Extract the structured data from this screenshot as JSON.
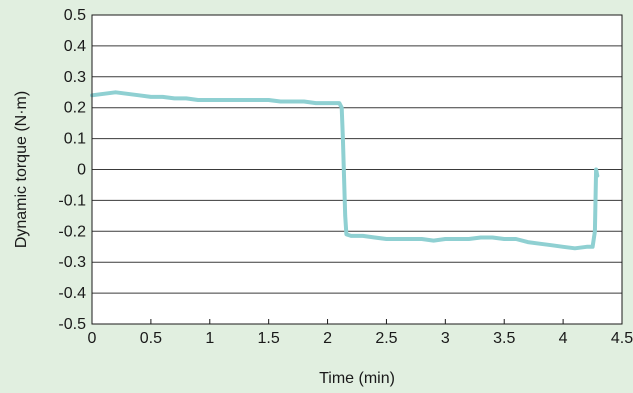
{
  "chart_data": {
    "type": "line",
    "title": "",
    "xlabel": "Time (min)",
    "ylabel": "Dynamic torque (N·m)",
    "xlim": [
      0,
      4.5
    ],
    "ylim": [
      -0.5,
      0.5
    ],
    "x_ticks": [
      "0",
      "0.5",
      "1",
      "1.5",
      "2",
      "2.5",
      "3",
      "3.5",
      "4",
      "4.5"
    ],
    "y_ticks": [
      "0.5",
      "0.4",
      "0.3",
      "0.2",
      "0.1",
      "0",
      "-0.1",
      "-0.2",
      "-0.3",
      "-0.4",
      "-0.5"
    ],
    "grid": "horizontal",
    "series": [
      {
        "color": "#8fd0d2",
        "x": [
          0,
          0.1,
          0.2,
          0.3,
          0.4,
          0.5,
          0.6,
          0.7,
          0.8,
          0.9,
          1.0,
          1.1,
          1.2,
          1.3,
          1.4,
          1.5,
          1.6,
          1.7,
          1.8,
          1.9,
          2.0,
          2.1,
          2.12,
          2.13,
          2.14,
          2.15,
          2.16,
          2.2,
          2.3,
          2.4,
          2.5,
          2.6,
          2.7,
          2.8,
          2.9,
          3.0,
          3.1,
          3.2,
          3.3,
          3.4,
          3.5,
          3.6,
          3.7,
          3.8,
          3.9,
          4.0,
          4.1,
          4.2,
          4.25,
          4.27,
          4.28,
          4.29
        ],
        "y": [
          0.24,
          0.245,
          0.25,
          0.245,
          0.24,
          0.235,
          0.235,
          0.23,
          0.23,
          0.225,
          0.225,
          0.225,
          0.225,
          0.225,
          0.225,
          0.225,
          0.22,
          0.22,
          0.22,
          0.215,
          0.215,
          0.215,
          0.2,
          0.1,
          -0.02,
          -0.15,
          -0.21,
          -0.215,
          -0.215,
          -0.22,
          -0.225,
          -0.225,
          -0.225,
          -0.225,
          -0.23,
          -0.225,
          -0.225,
          -0.225,
          -0.22,
          -0.22,
          -0.225,
          -0.225,
          -0.235,
          -0.24,
          -0.245,
          -0.25,
          -0.255,
          -0.25,
          -0.25,
          -0.2,
          0.0,
          -0.02
        ]
      }
    ]
  }
}
